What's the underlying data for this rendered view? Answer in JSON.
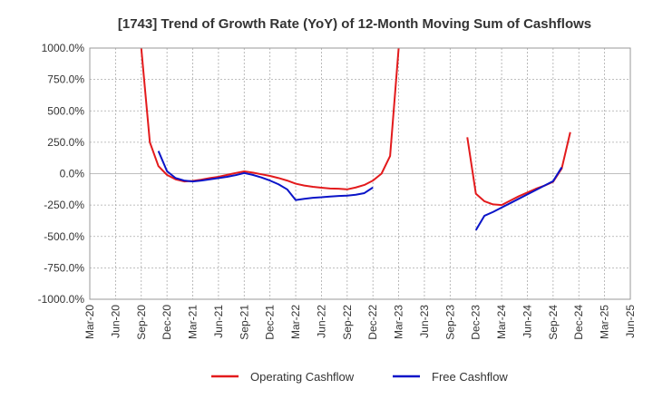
{
  "chart_data": {
    "type": "line",
    "title": "[1743]  Trend of Growth Rate (YoY) of 12-Month Moving Sum of Cashflows",
    "x_ticks": [
      "Mar-20",
      "Jun-20",
      "Sep-20",
      "Dec-20",
      "Mar-21",
      "Jun-21",
      "Sep-21",
      "Dec-21",
      "Mar-22",
      "Jun-22",
      "Sep-22",
      "Dec-22",
      "Mar-23",
      "Jun-23",
      "Sep-23",
      "Dec-23",
      "Mar-24",
      "Jun-24",
      "Sep-24",
      "Dec-24",
      "Mar-25",
      "Jun-25"
    ],
    "y_ticks": [
      "1000.0%",
      "750.0%",
      "500.0%",
      "250.0%",
      "0.0%",
      "-250.0%",
      "-500.0%",
      "-750.0%",
      "-1000.0%"
    ],
    "ylim": [
      -1000,
      1000
    ],
    "grid": true,
    "legend_position": "bottom",
    "series": [
      {
        "name": "Operating Cashflow",
        "color": "#e31a1c",
        "points": [
          [
            "2020-09",
            1000
          ],
          [
            "2020-10",
            250
          ],
          [
            "2020-11",
            60
          ],
          [
            "2020-12",
            -10
          ],
          [
            "2021-01",
            -45
          ],
          [
            "2021-02",
            -62
          ],
          [
            "2021-03",
            -58
          ],
          [
            "2021-04",
            -48
          ],
          [
            "2021-05",
            -35
          ],
          [
            "2021-06",
            -25
          ],
          [
            "2021-07",
            -10
          ],
          [
            "2021-08",
            5
          ],
          [
            "2021-09",
            18
          ],
          [
            "2021-10",
            8
          ],
          [
            "2021-11",
            -5
          ],
          [
            "2021-12",
            -18
          ],
          [
            "2022-01",
            -35
          ],
          [
            "2022-02",
            -55
          ],
          [
            "2022-03",
            -80
          ],
          [
            "2022-04",
            -95
          ],
          [
            "2022-05",
            -105
          ],
          [
            "2022-06",
            -112
          ],
          [
            "2022-07",
            -118
          ],
          [
            "2022-08",
            -120
          ],
          [
            "2022-09",
            -125
          ],
          [
            "2022-10",
            -110
          ],
          [
            "2022-11",
            -90
          ],
          [
            "2022-12",
            -55
          ],
          [
            "2023-01",
            0
          ],
          [
            "2023-02",
            140
          ],
          [
            "2023-03",
            1000
          ],
          null,
          [
            "2023-11",
            290
          ],
          [
            "2023-12",
            -160
          ],
          [
            "2024-01",
            -220
          ],
          [
            "2024-02",
            -245
          ],
          [
            "2024-03",
            -250
          ],
          [
            "2024-04",
            -215
          ],
          [
            "2024-05",
            -180
          ],
          [
            "2024-06",
            -150
          ],
          [
            "2024-07",
            -120
          ],
          [
            "2024-08",
            -95
          ],
          [
            "2024-09",
            -65
          ],
          [
            "2024-10",
            40
          ],
          [
            "2024-11",
            330
          ]
        ]
      },
      {
        "name": "Free Cashflow",
        "color": "#0a14c8",
        "points": [
          [
            "2020-11",
            180
          ],
          [
            "2020-12",
            20
          ],
          [
            "2021-01",
            -35
          ],
          [
            "2021-02",
            -55
          ],
          [
            "2021-03",
            -62
          ],
          [
            "2021-04",
            -55
          ],
          [
            "2021-05",
            -45
          ],
          [
            "2021-06",
            -35
          ],
          [
            "2021-07",
            -25
          ],
          [
            "2021-08",
            -12
          ],
          [
            "2021-09",
            5
          ],
          [
            "2021-10",
            -10
          ],
          [
            "2021-11",
            -30
          ],
          [
            "2021-12",
            -55
          ],
          [
            "2022-01",
            -85
          ],
          [
            "2022-02",
            -125
          ],
          [
            "2022-03",
            -210
          ],
          [
            "2022-04",
            -200
          ],
          [
            "2022-05",
            -192
          ],
          [
            "2022-06",
            -188
          ],
          [
            "2022-07",
            -182
          ],
          [
            "2022-08",
            -178
          ],
          [
            "2022-09",
            -175
          ],
          [
            "2022-10",
            -168
          ],
          [
            "2022-11",
            -155
          ],
          [
            "2022-12",
            -110
          ],
          null,
          [
            "2023-12",
            -450
          ],
          [
            "2024-01",
            -335
          ],
          [
            "2024-02",
            -305
          ],
          [
            "2024-03",
            -270
          ],
          [
            "2024-04",
            -235
          ],
          [
            "2024-05",
            -200
          ],
          [
            "2024-06",
            -165
          ],
          [
            "2024-07",
            -130
          ],
          [
            "2024-08",
            -95
          ],
          [
            "2024-09",
            -60
          ],
          [
            "2024-10",
            50
          ]
        ]
      }
    ]
  }
}
